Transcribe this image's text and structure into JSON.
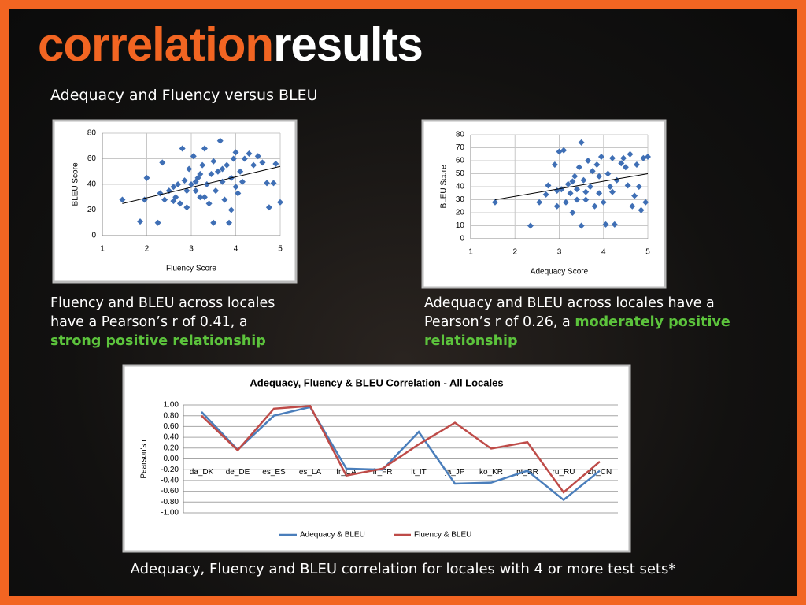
{
  "header": {
    "title_part1": "correlation",
    "title_part2": "results",
    "subtitle": "Adequacy and Fluency versus BLEU"
  },
  "captions": [
    {
      "text": "Fluency and BLEU across locales have a Pearson’s r of 0.41, a",
      "highlight": "strong positive relationship"
    },
    {
      "text": "Adequacy and BLEU across locales have a Pearson’s r of 0.26, a",
      "highlight": "moderately positive relationship"
    }
  ],
  "footer": "Adequacy, Fluency and BLEU correlation for locales with 4 or more test sets*",
  "chart_data": [
    {
      "type": "scatter",
      "x_label": "Fluency Score",
      "y_label": "BLEU Score",
      "color": "#3f6fb5",
      "grid": true,
      "xlim": [
        1,
        5
      ],
      "ylim": [
        0,
        80
      ],
      "xticks": [
        1,
        2,
        3,
        4,
        5
      ],
      "yticks": [
        0,
        20,
        40,
        60,
        80
      ],
      "x": [
        1.45,
        1.85,
        1.95,
        2.0,
        2.25,
        2.3,
        2.35,
        2.4,
        2.5,
        2.6,
        2.65,
        2.7,
        2.75,
        2.8,
        2.85,
        2.9,
        2.95,
        3.0,
        3.05,
        3.1,
        3.15,
        3.2,
        3.25,
        3.3,
        3.35,
        3.4,
        3.45,
        3.5,
        3.5,
        3.55,
        3.6,
        3.65,
        3.7,
        3.75,
        3.8,
        3.85,
        3.9,
        3.95,
        4.0,
        4.05,
        4.1,
        4.15,
        4.2,
        4.3,
        4.4,
        4.5,
        4.6,
        4.7,
        4.75,
        4.85,
        4.9,
        5.0,
        2.9,
        3.2,
        3.7,
        4.0,
        3.3,
        2.6,
        3.1,
        3.9
      ],
      "values": [
        28,
        11,
        28,
        45,
        10,
        33,
        57,
        28,
        35,
        38,
        30,
        40,
        25,
        68,
        43,
        35,
        52,
        40,
        62,
        35,
        45,
        30,
        55,
        68,
        40,
        25,
        48,
        10,
        58,
        35,
        50,
        74,
        42,
        28,
        55,
        10,
        45,
        60,
        65,
        33,
        50,
        42,
        60,
        64,
        55,
        62,
        57,
        41,
        22,
        41,
        56,
        26,
        22,
        48,
        52,
        38,
        30,
        27,
        42,
        20
      ],
      "trendline": {
        "x": [
          1.45,
          5
        ],
        "y": [
          25,
          54
        ]
      }
    },
    {
      "type": "scatter",
      "x_label": "Adequacy Score",
      "y_label": "BLEU Score",
      "color": "#3f6fb5",
      "grid": true,
      "xlim": [
        1,
        5
      ],
      "ylim": [
        0,
        80
      ],
      "xticks": [
        1,
        2,
        3,
        4,
        5
      ],
      "yticks": [
        0,
        10,
        20,
        30,
        40,
        50,
        60,
        70,
        80
      ],
      "x": [
        1.55,
        2.35,
        2.55,
        2.7,
        2.75,
        2.9,
        2.95,
        3.0,
        3.05,
        3.1,
        3.15,
        3.2,
        3.25,
        3.3,
        3.35,
        3.4,
        3.45,
        3.5,
        3.5,
        3.55,
        3.6,
        3.65,
        3.7,
        3.75,
        3.8,
        3.85,
        3.9,
        3.95,
        4.0,
        4.05,
        4.1,
        4.15,
        4.2,
        4.25,
        4.3,
        4.4,
        4.45,
        4.5,
        4.6,
        4.7,
        4.75,
        4.8,
        4.85,
        4.9,
        4.95,
        5.0,
        3.3,
        3.6,
        3.9,
        4.2,
        2.95,
        3.4,
        4.65,
        4.55
      ],
      "values": [
        28,
        10,
        28,
        34,
        41,
        57,
        25,
        67,
        38,
        68,
        28,
        42,
        35,
        20,
        48,
        38,
        55,
        74,
        10,
        45,
        30,
        60,
        40,
        52,
        25,
        57,
        35,
        63,
        28,
        11,
        50,
        40,
        62,
        11,
        45,
        58,
        62,
        55,
        65,
        33,
        57,
        40,
        22,
        62,
        28,
        63,
        44,
        36,
        48,
        36,
        37,
        30,
        25,
        41
      ],
      "trendline": {
        "x": [
          1.55,
          5
        ],
        "y": [
          30,
          50
        ]
      }
    },
    {
      "type": "line",
      "title": "Adequacy, Fluency & BLEU Correlation - All Locales",
      "y_label": "Pearson's r",
      "grid": true,
      "categories": [
        "da_DK",
        "de_DE",
        "es_ES",
        "es_LA",
        "fr_CA",
        "fr_FR",
        "it_IT",
        "ja_JP",
        "ko_KR",
        "pt_BR",
        "ru_RU",
        "zh_CN"
      ],
      "ylim": [
        -1,
        1
      ],
      "yticks": [
        {
          "value": 1,
          "label": "1.00"
        },
        {
          "value": 0.8,
          "label": "0.80"
        },
        {
          "value": 0.6,
          "label": "0.60"
        },
        {
          "value": 0.4,
          "label": "0.40"
        },
        {
          "value": 0.2,
          "label": "0.20"
        },
        {
          "value": 0,
          "label": "0.00"
        },
        {
          "value": -0.2,
          "label": "-0.20"
        },
        {
          "value": -0.4,
          "label": "-0.40"
        },
        {
          "value": -0.6,
          "label": "-0.60"
        },
        {
          "value": -0.8,
          "label": "-0.80"
        },
        {
          "value": -1,
          "label": "-1.00"
        }
      ],
      "legend": "bottom",
      "series": [
        {
          "name": "Adequacy & BLEU",
          "color": "#4a7ebb",
          "values": [
            0.87,
            0.17,
            0.8,
            0.96,
            -0.18,
            -0.2,
            0.5,
            -0.46,
            -0.44,
            -0.22,
            -0.76,
            -0.22
          ]
        },
        {
          "name": "Fluency & BLEU",
          "color": "#be4b48",
          "values": [
            0.8,
            0.16,
            0.93,
            0.98,
            -0.31,
            -0.18,
            0.27,
            0.67,
            0.19,
            0.31,
            -0.62,
            -0.05
          ]
        }
      ]
    }
  ]
}
